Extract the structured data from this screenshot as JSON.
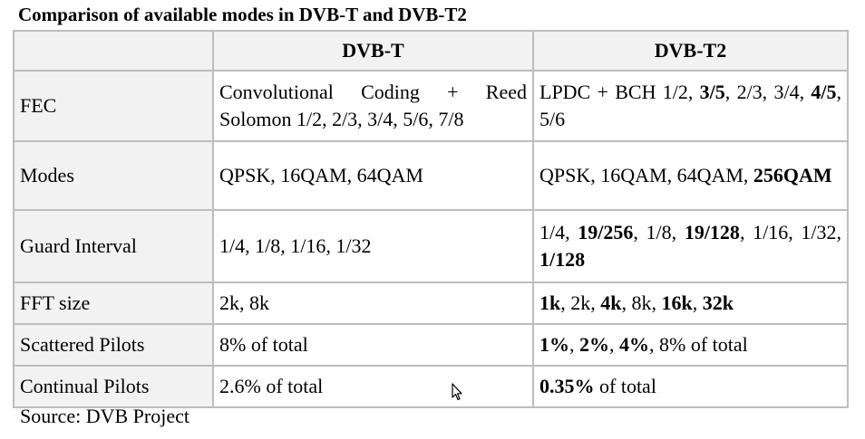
{
  "title": "Comparison of available modes in DVB-T and DVB-T2",
  "header": {
    "blank": "",
    "col_dvbt": "DVB-T",
    "col_dvbt2": "DVB-T2"
  },
  "rows": [
    {
      "label": "FEC",
      "dvbt": "Convolutional Coding + Reed Solomon 1/2, 2/3, 3/4, 5/6, 7/8",
      "dvbt2": [
        {
          "t": "LPDC + BCH 1/2, ",
          "b": false
        },
        {
          "t": "3/5",
          "b": true
        },
        {
          "t": ", 2/3, 3/4, ",
          "b": false
        },
        {
          "t": "4/5",
          "b": true
        },
        {
          "t": ", 5/6",
          "b": false
        }
      ]
    },
    {
      "label": "Modes",
      "dvbt": "QPSK, 16QAM, 64QAM",
      "dvbt2": [
        {
          "t": "QPSK, 16QAM, 64QAM, ",
          "b": false
        },
        {
          "t": "256QAM",
          "b": true
        }
      ]
    },
    {
      "label": "Guard Interval",
      "dvbt": "1/4, 1/8, 1/16, 1/32",
      "dvbt2": [
        {
          "t": "1/4, ",
          "b": false
        },
        {
          "t": "19/256",
          "b": true
        },
        {
          "t": ", 1/8, ",
          "b": false
        },
        {
          "t": "19/128",
          "b": true
        },
        {
          "t": ", 1/16, 1/32, ",
          "b": false
        },
        {
          "t": "1/128",
          "b": true
        }
      ]
    },
    {
      "label": "FFT size",
      "dvbt": "2k, 8k",
      "dvbt2": [
        {
          "t": "1k",
          "b": true
        },
        {
          "t": ", 2k, ",
          "b": false
        },
        {
          "t": "4k",
          "b": true
        },
        {
          "t": ", 8k, ",
          "b": false
        },
        {
          "t": "16k",
          "b": true
        },
        {
          "t": ", ",
          "b": false
        },
        {
          "t": "32k",
          "b": true
        }
      ]
    },
    {
      "label": "Scattered Pilots",
      "dvbt": "8% of total",
      "dvbt2": [
        {
          "t": "1%",
          "b": true
        },
        {
          "t": ", ",
          "b": false
        },
        {
          "t": "2%",
          "b": true
        },
        {
          "t": ", ",
          "b": false
        },
        {
          "t": "4%",
          "b": true
        },
        {
          "t": ", 8% of total",
          "b": false
        }
      ]
    },
    {
      "label": "Continual Pilots",
      "dvbt": "2.6% of total",
      "dvbt2": [
        {
          "t": "0.35%",
          "b": true
        },
        {
          "t": " of total",
          "b": false
        }
      ]
    }
  ],
  "source": "Source: DVB Project",
  "cursor_icon": "mouse-pointer-icon"
}
